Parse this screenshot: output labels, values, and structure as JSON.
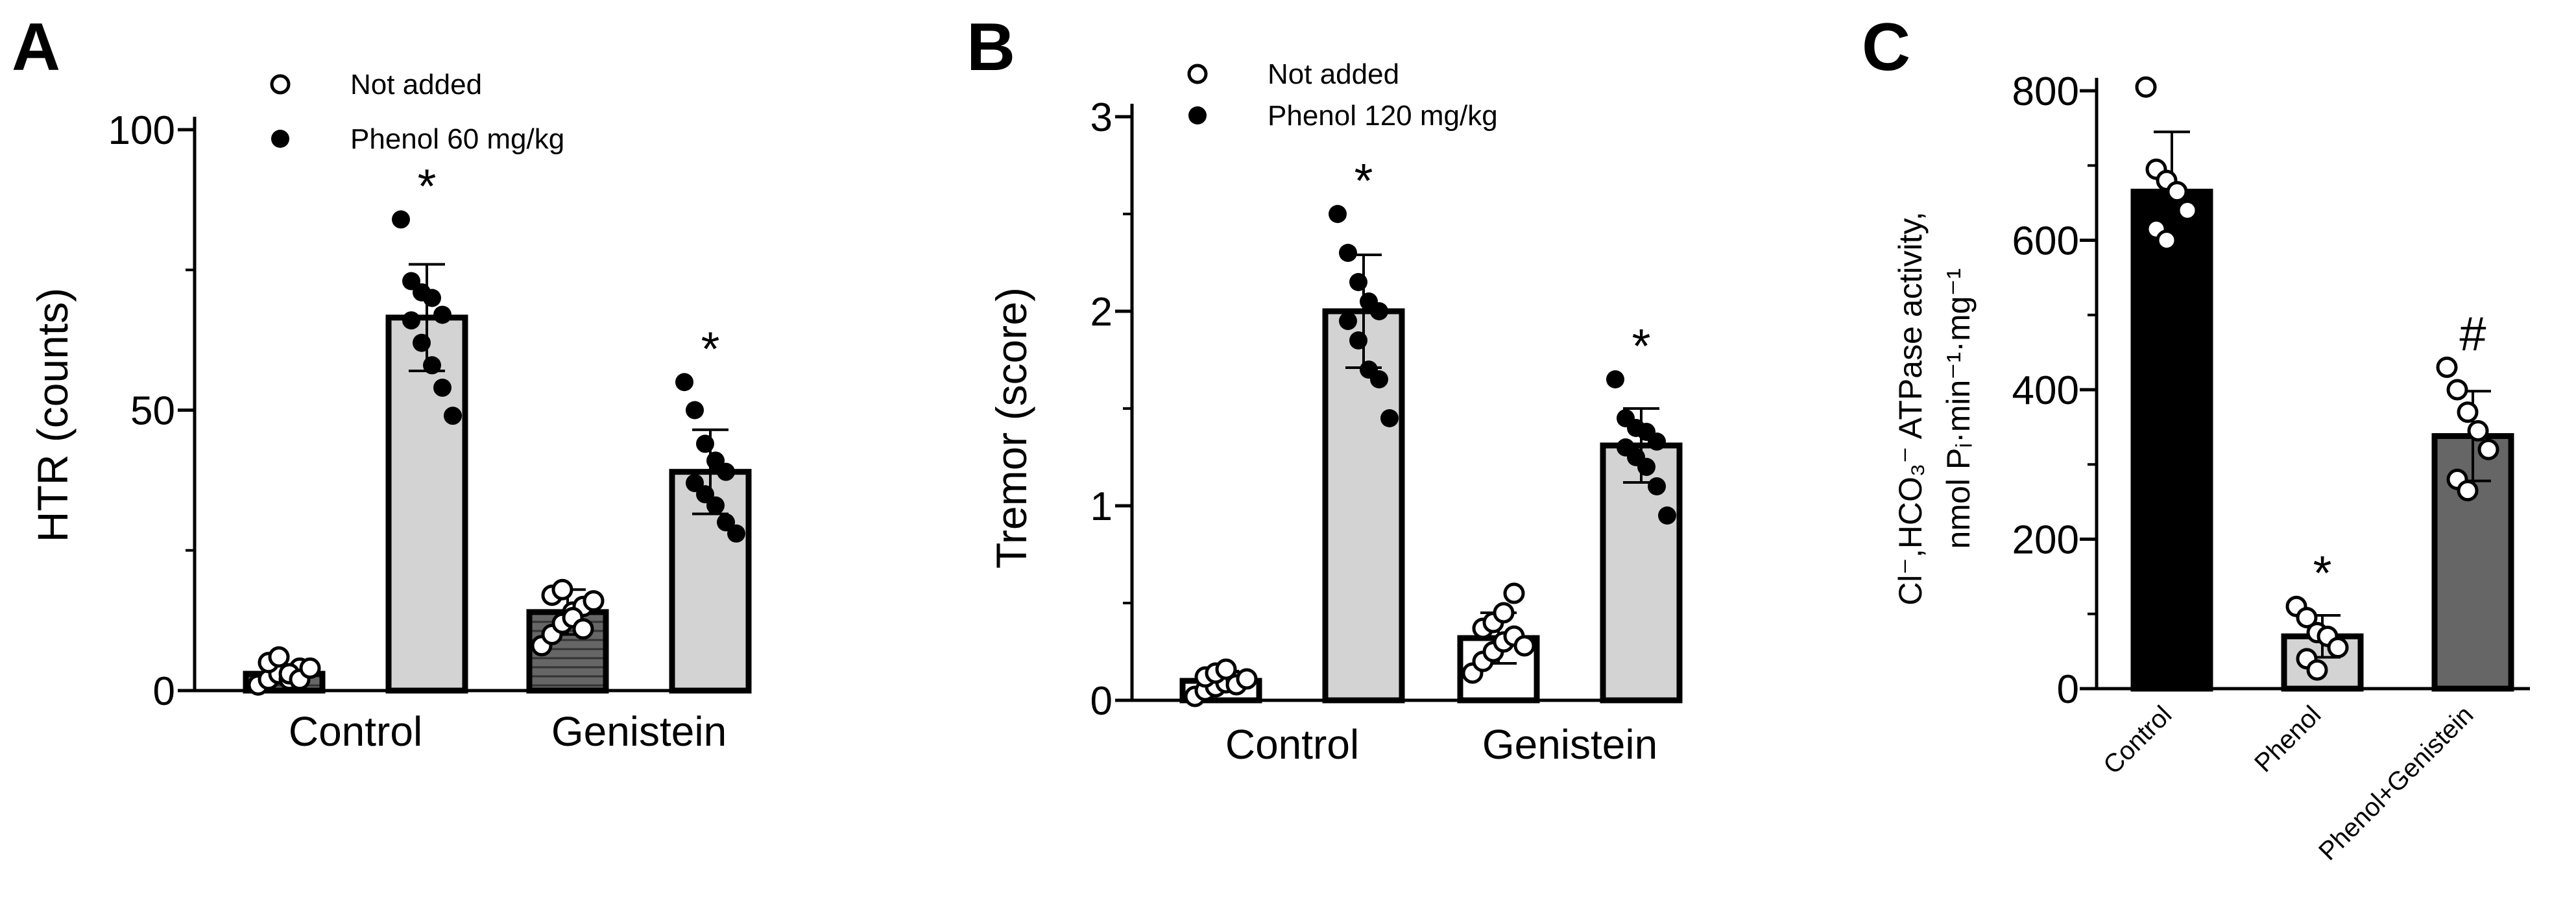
{
  "colors": {
    "black": "#000000",
    "light_gray": "#d3d3d3",
    "dark_gray": "#666666",
    "hatched_gray": "#555555",
    "white": "#ffffff"
  },
  "chart_data": [
    {
      "panel": "A",
      "type": "bar",
      "ylabel": "HTR (counts)",
      "ylim": [
        0,
        100
      ],
      "yticks": [
        0,
        50,
        100
      ],
      "categories": [
        "Control",
        "Genistein"
      ],
      "legend": {
        "placement": "top",
        "entries": [
          {
            "label": "Not added",
            "marker": "open-circle"
          },
          {
            "label": "Phenol 60 mg/kg",
            "marker": "filled-circle"
          }
        ]
      },
      "series": [
        {
          "name": "Not added",
          "marker": "open-circle",
          "bar_fill": "dark_gray",
          "values": [
            3,
            14
          ],
          "error": [
            1.5,
            4
          ],
          "points": [
            [
              1,
              2,
              3,
              2,
              4,
              5,
              6,
              3,
              2,
              4
            ],
            [
              8,
              10,
              12,
              14,
              15,
              17,
              18,
              13,
              11,
              16
            ]
          ],
          "significance": [
            "",
            ""
          ]
        },
        {
          "name": "Phenol 60 mg/kg",
          "marker": "filled-circle",
          "bar_fill": "light_gray",
          "values": [
            66.5,
            39
          ],
          "error": [
            9.5,
            7.5
          ],
          "points": [
            [
              84,
              73,
              71,
              70,
              67,
              66,
              62,
              58,
              54,
              49
            ],
            [
              55,
              50,
              44,
              41,
              39,
              37,
              35,
              33,
              30,
              28
            ]
          ],
          "significance": [
            "*",
            "*"
          ]
        }
      ]
    },
    {
      "panel": "B",
      "type": "bar",
      "ylabel": "Tremor (score)",
      "ylim": [
        0,
        3
      ],
      "yticks": [
        0,
        1,
        2,
        3
      ],
      "categories": [
        "Control",
        "Genistein"
      ],
      "legend": {
        "placement": "top",
        "entries": [
          {
            "label": "Not added",
            "marker": "open-circle"
          },
          {
            "label": "Phenol 120 mg/kg",
            "marker": "filled-circle"
          }
        ]
      },
      "series": [
        {
          "name": "Not added",
          "marker": "open-circle",
          "bar_fill": "white",
          "values": [
            0.1,
            0.32
          ],
          "error": [
            0.05,
            0.13
          ],
          "points": [
            [
              0.02,
              0.05,
              0.07,
              0.09,
              0.1,
              0.12,
              0.14,
              0.16,
              0.08,
              0.11
            ],
            [
              0.14,
              0.2,
              0.25,
              0.3,
              0.33,
              0.37,
              0.4,
              0.45,
              0.55,
              0.28
            ]
          ],
          "significance": [
            "",
            ""
          ]
        },
        {
          "name": "Phenol 120 mg/kg",
          "marker": "filled-circle",
          "bar_fill": "light_gray",
          "values": [
            2.0,
            1.31
          ],
          "error": [
            0.29,
            0.19
          ],
          "points": [
            [
              2.5,
              2.3,
              2.15,
              2.05,
              2.0,
              1.95,
              1.85,
              1.7,
              1.65,
              1.45
            ],
            [
              1.65,
              1.45,
              1.4,
              1.38,
              1.33,
              1.3,
              1.25,
              1.2,
              1.1,
              0.95
            ]
          ],
          "significance": [
            "*",
            "*"
          ]
        }
      ]
    },
    {
      "panel": "C",
      "type": "bar",
      "ylabel_line1": "Cl⁻,HCO₃⁻ ATPase activity,",
      "ylabel_line2": "nmol Pᵢ·min⁻¹·mg⁻¹",
      "ylim": [
        0,
        800
      ],
      "yticks": [
        0,
        200,
        400,
        600,
        800
      ],
      "categories": [
        "Control",
        "Phenol",
        "Phenol+Genistein"
      ],
      "values": [
        665,
        70,
        338
      ],
      "error": [
        80,
        28,
        60
      ],
      "bar_fills": [
        "black",
        "light_gray",
        "dark_gray"
      ],
      "points": [
        [
          805,
          695,
          680,
          665,
          640,
          615,
          600
        ],
        [
          110,
          95,
          75,
          70,
          55,
          40,
          25
        ],
        [
          430,
          400,
          370,
          345,
          320,
          280,
          265
        ]
      ],
      "significance": [
        "",
        "*",
        "#"
      ]
    }
  ]
}
